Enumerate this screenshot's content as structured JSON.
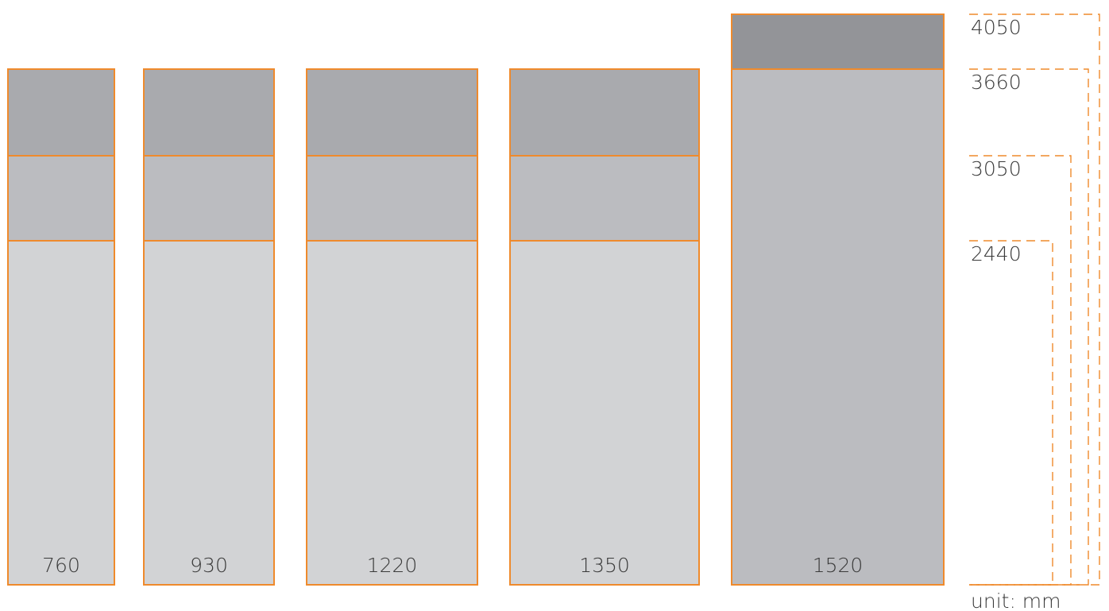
{
  "colors": {
    "outline": "#ef8a2c",
    "light": "#d2d3d5",
    "medium": "#bbbcc0",
    "dark": "#a9aaae",
    "darkest": "#939498",
    "text": "#3a3a3a"
  },
  "sheets": [
    {
      "width_label": "760",
      "width_mm": 760,
      "segments": [
        {
          "to_mm": 2440,
          "tone": "light"
        },
        {
          "to_mm": 3050,
          "tone": "medium"
        },
        {
          "to_mm": 3660,
          "tone": "dark"
        }
      ]
    },
    {
      "width_label": "930",
      "width_mm": 930,
      "segments": [
        {
          "to_mm": 2440,
          "tone": "light"
        },
        {
          "to_mm": 3050,
          "tone": "medium"
        },
        {
          "to_mm": 3660,
          "tone": "dark"
        }
      ]
    },
    {
      "width_label": "1220",
      "width_mm": 1220,
      "segments": [
        {
          "to_mm": 2440,
          "tone": "light"
        },
        {
          "to_mm": 3050,
          "tone": "medium"
        },
        {
          "to_mm": 3660,
          "tone": "dark"
        }
      ]
    },
    {
      "width_label": "1350",
      "width_mm": 1350,
      "segments": [
        {
          "to_mm": 2440,
          "tone": "light"
        },
        {
          "to_mm": 3050,
          "tone": "medium"
        },
        {
          "to_mm": 3660,
          "tone": "dark"
        }
      ]
    },
    {
      "width_label": "1520",
      "width_mm": 1520,
      "segments": [
        {
          "to_mm": 3660,
          "tone": "medium"
        },
        {
          "to_mm": 4050,
          "tone": "darkest"
        }
      ]
    }
  ],
  "length_labels": [
    {
      "text": "4050",
      "value_mm": 4050
    },
    {
      "text": "3660",
      "value_mm": 3660
    },
    {
      "text": "3050",
      "value_mm": 3050
    },
    {
      "text": "2440",
      "value_mm": 2440
    }
  ],
  "unit_label": "unit: mm"
}
